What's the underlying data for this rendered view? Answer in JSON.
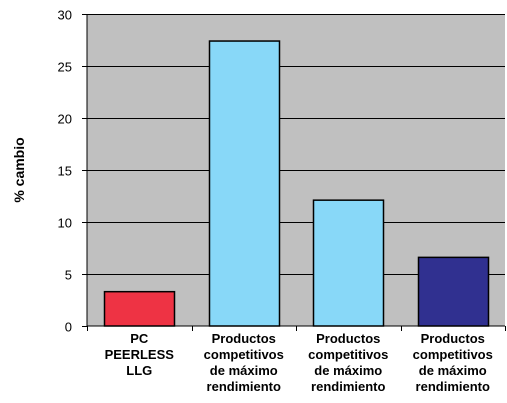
{
  "chart_data": {
    "type": "bar",
    "title": "",
    "xlabel": "",
    "ylabel": "% cambio",
    "ylim": [
      0,
      30
    ],
    "yticks": [
      0,
      5,
      10,
      15,
      20,
      25,
      30
    ],
    "grid": true,
    "legend": "none",
    "plot_background": "#c0c0c0",
    "categories": [
      [
        "PC",
        "PEERLESS",
        "LLG"
      ],
      [
        "Productos",
        "competitivos",
        "de máximo",
        "rendimiento"
      ],
      [
        "Productos",
        "competitivos",
        "de máximo",
        "rendimiento"
      ],
      [
        "Productos",
        "competitivos",
        "de máximo",
        "rendimiento"
      ]
    ],
    "values": [
      3.3,
      27.4,
      12.1,
      6.6
    ],
    "colors": [
      "#ee3344",
      "#88d8f8",
      "#88d8f8",
      "#303090"
    ]
  }
}
